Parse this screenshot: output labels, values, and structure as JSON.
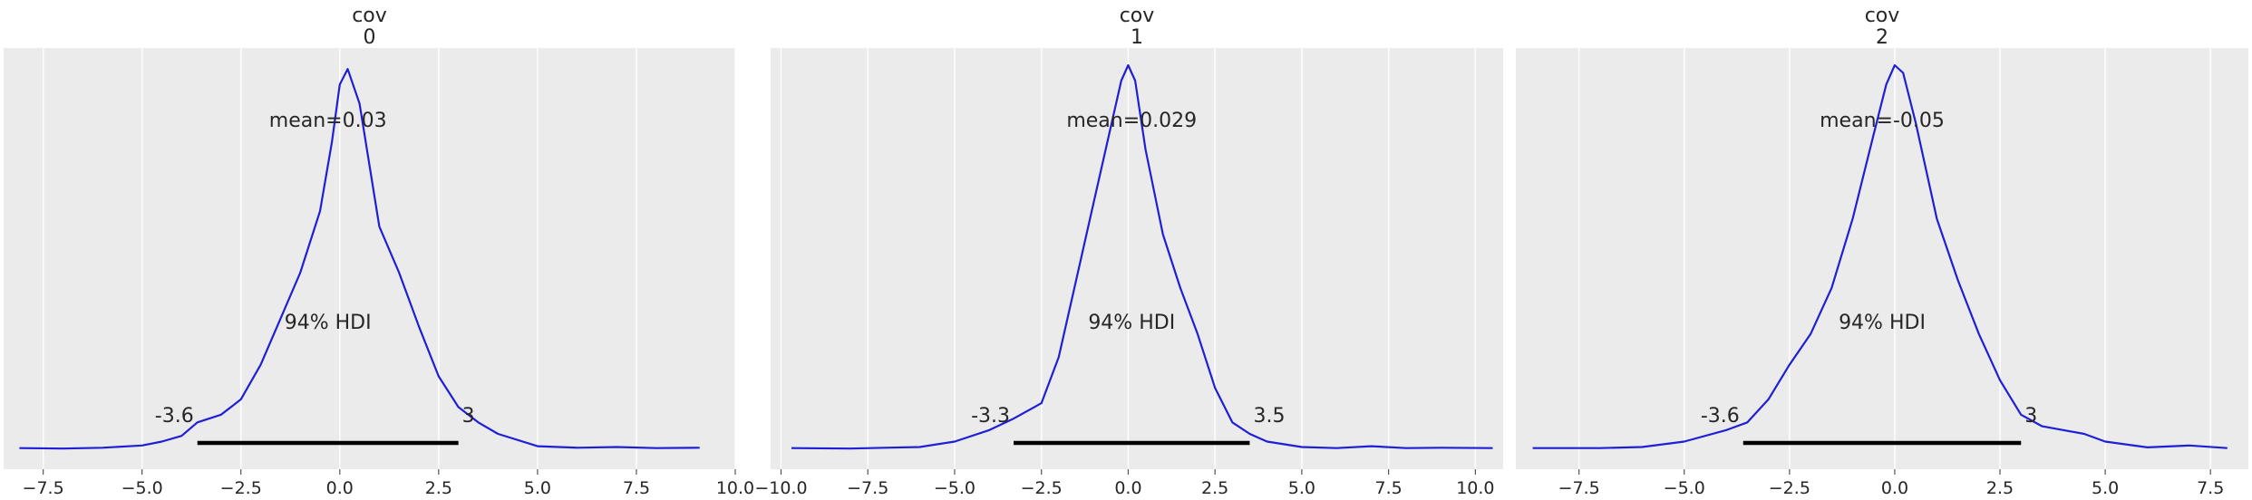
{
  "chart_data": [
    {
      "type": "area",
      "title": [
        "cov",
        "0"
      ],
      "xlim": [
        -8.5,
        10
      ],
      "ticks": [
        {
          "v": -7.5,
          "label": "−7.5"
        },
        {
          "v": -5.0,
          "label": "−5.0"
        },
        {
          "v": -2.5,
          "label": "−2.5"
        },
        {
          "v": 0.0,
          "label": "0.0"
        },
        {
          "v": 2.5,
          "label": "2.5"
        },
        {
          "v": 5.0,
          "label": "5.0"
        },
        {
          "v": 7.5,
          "label": "7.5"
        },
        {
          "v": 10.0,
          "label": "10.0"
        }
      ],
      "mean_label": "mean=0.03",
      "hdi_label": "94% HDI",
      "hdi": {
        "low": -3.6,
        "high": 3.0,
        "low_label": "-3.6",
        "high_label": "3"
      },
      "kde": {
        "x": [
          -8.1,
          -7,
          -6,
          -5,
          -4.5,
          -4,
          -3.6,
          -3,
          -2.5,
          -2,
          -1.5,
          -1,
          -0.5,
          -0.2,
          0,
          0.2,
          0.5,
          1,
          1.5,
          2,
          2.5,
          3,
          3.5,
          4,
          5,
          6,
          7,
          8,
          9.1
        ],
        "y": [
          0.003,
          0.002,
          0.004,
          0.01,
          0.02,
          0.035,
          0.07,
          0.09,
          0.13,
          0.22,
          0.34,
          0.46,
          0.62,
          0.8,
          0.95,
          0.99,
          0.9,
          0.58,
          0.46,
          0.32,
          0.19,
          0.11,
          0.07,
          0.04,
          0.008,
          0.004,
          0.006,
          0.003,
          0.004
        ]
      }
    },
    {
      "type": "area",
      "title": [
        "cov",
        "1"
      ],
      "xlim": [
        -10.3,
        10.8
      ],
      "ticks": [
        {
          "v": -10.0,
          "label": "−10.0"
        },
        {
          "v": -7.5,
          "label": "−7.5"
        },
        {
          "v": -5.0,
          "label": "−5.0"
        },
        {
          "v": -2.5,
          "label": "−2.5"
        },
        {
          "v": 0.0,
          "label": "0.0"
        },
        {
          "v": 2.5,
          "label": "2.5"
        },
        {
          "v": 5.0,
          "label": "5.0"
        },
        {
          "v": 7.5,
          "label": "7.5"
        },
        {
          "v": 10.0,
          "label": "10.0"
        }
      ],
      "mean_label": "mean=0.029",
      "hdi_label": "94% HDI",
      "hdi": {
        "low": -3.3,
        "high": 3.5,
        "low_label": "-3.3",
        "high_label": "3.5"
      },
      "kde": {
        "x": [
          -9.7,
          -8,
          -7,
          -6,
          -5,
          -4,
          -3.3,
          -2.5,
          -2,
          -1.5,
          -1,
          -0.5,
          -0.2,
          0,
          0.2,
          0.5,
          1,
          1.5,
          2,
          2.5,
          3,
          3.5,
          4,
          5,
          6,
          7,
          8,
          9,
          10.5
        ],
        "y": [
          0.003,
          0.002,
          0.004,
          0.006,
          0.02,
          0.05,
          0.08,
          0.12,
          0.24,
          0.44,
          0.64,
          0.84,
          0.96,
          1.0,
          0.96,
          0.78,
          0.56,
          0.42,
          0.3,
          0.16,
          0.07,
          0.04,
          0.02,
          0.006,
          0.003,
          0.008,
          0.003,
          0.004,
          0.003
        ]
      }
    },
    {
      "type": "area",
      "title": [
        "cov",
        "2"
      ],
      "xlim": [
        -9,
        8.4
      ],
      "ticks": [
        {
          "v": -7.5,
          "label": "−7.5"
        },
        {
          "v": -5.0,
          "label": "−5.0"
        },
        {
          "v": -2.5,
          "label": "−2.5"
        },
        {
          "v": 0.0,
          "label": "0.0"
        },
        {
          "v": 2.5,
          "label": "2.5"
        },
        {
          "v": 5.0,
          "label": "5.0"
        },
        {
          "v": 7.5,
          "label": "7.5"
        }
      ],
      "mean_label": "mean=-0.05",
      "hdi_label": "94% HDI",
      "hdi": {
        "low": -3.6,
        "high": 3.0,
        "low_label": "-3.6",
        "high_label": "3"
      },
      "kde": {
        "x": [
          -8.6,
          -7,
          -6,
          -5,
          -4,
          -3.5,
          -3,
          -2.5,
          -2,
          -1.5,
          -1,
          -0.5,
          -0.2,
          0,
          0.2,
          0.5,
          1,
          1.5,
          2,
          2.5,
          3,
          3.5,
          4,
          4.5,
          5,
          6,
          7,
          7.9
        ],
        "y": [
          0.003,
          0.003,
          0.006,
          0.02,
          0.05,
          0.07,
          0.13,
          0.22,
          0.3,
          0.42,
          0.6,
          0.82,
          0.95,
          1.0,
          0.98,
          0.85,
          0.6,
          0.44,
          0.3,
          0.18,
          0.09,
          0.06,
          0.05,
          0.04,
          0.02,
          0.005,
          0.01,
          0.003
        ]
      }
    }
  ],
  "colors": {
    "kde_line": "#1f1fd6",
    "hdi_bar": "#000000",
    "panel_bg": "#ebebeb",
    "grid": "#ffffff"
  }
}
